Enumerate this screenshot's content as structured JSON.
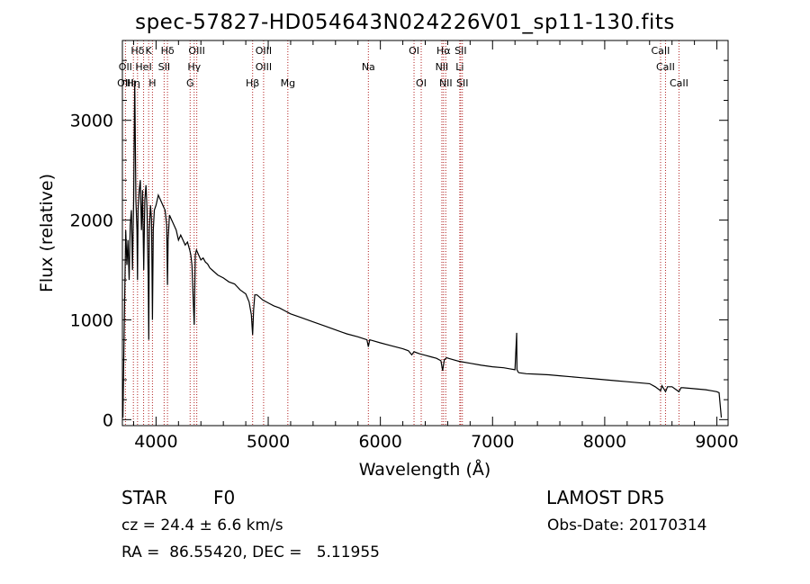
{
  "title": "spec-57827-HD054643N024226V01_sp11-130.fits",
  "footer": {
    "class_label": "STAR",
    "subclass": "F0",
    "survey": "LAMOST DR5",
    "cz_text": "cz = 24.4 ± 6.6 km/s",
    "obs_date": "Obs-Date: 20170314",
    "coords": "RA =  86.55420, DEC =   5.11955"
  },
  "chart_data": {
    "type": "line",
    "title": "spec-57827-HD054643N024226V01_sp11-130.fits",
    "xlabel": "Wavelength (Å)",
    "ylabel": "Flux (relative)",
    "xlim": [
      3700,
      9100
    ],
    "ylim": [
      -60,
      3800
    ],
    "xticks": [
      4000,
      5000,
      6000,
      7000,
      8000,
      9000
    ],
    "yticks": [
      0,
      1000,
      2000,
      3000
    ],
    "grid": false,
    "line_color": "#000000",
    "marker_color": "#b22222",
    "series": [
      {
        "x": [
          3700,
          3705,
          3712,
          3720,
          3730,
          3740,
          3750,
          3760,
          3770,
          3780,
          3790,
          3800,
          3810,
          3820,
          3830,
          3835,
          3840,
          3850,
          3860,
          3870,
          3880,
          3890,
          3900,
          3910,
          3920,
          3930,
          3935,
          3940,
          3950,
          3960,
          3968,
          3975,
          3985,
          4000,
          4020,
          4040,
          4060,
          4080,
          4095,
          4102,
          4108,
          4120,
          4140,
          4160,
          4180,
          4200,
          4220,
          4240,
          4260,
          4280,
          4300,
          4310,
          4320,
          4330,
          4340,
          4345,
          4350,
          4360,
          4380,
          4400,
          4420,
          4440,
          4460,
          4480,
          4500,
          4550,
          4600,
          4650,
          4700,
          4750,
          4800,
          4830,
          4850,
          4861,
          4870,
          4880,
          4900,
          4950,
          5000,
          5050,
          5100,
          5150,
          5200,
          5300,
          5400,
          5500,
          5600,
          5700,
          5800,
          5880,
          5893,
          5905,
          6000,
          6100,
          6200,
          6250,
          6280,
          6300,
          6350,
          6400,
          6450,
          6500,
          6540,
          6555,
          6563,
          6570,
          6590,
          6620,
          6700,
          6800,
          6900,
          7000,
          7100,
          7150,
          7200,
          7215,
          7218,
          7222,
          7226,
          7235,
          7300,
          7400,
          7500,
          7600,
          7700,
          7800,
          7900,
          8000,
          8100,
          8200,
          8300,
          8400,
          8450,
          8498,
          8510,
          8542,
          8560,
          8600,
          8662,
          8680,
          8700,
          8800,
          8900,
          8950,
          9000,
          9020,
          9040
        ],
        "y": [
          100,
          20,
          600,
          1200,
          1900,
          1550,
          1800,
          1400,
          1950,
          2100,
          1500,
          2200,
          3400,
          2200,
          1900,
          1400,
          2100,
          2300,
          2400,
          1900,
          2300,
          1500,
          2200,
          2350,
          2100,
          1400,
          800,
          1900,
          2150,
          2000,
          1000,
          1900,
          2100,
          2150,
          2250,
          2200,
          2150,
          2100,
          1950,
          1350,
          1800,
          2050,
          2000,
          1950,
          1900,
          1800,
          1850,
          1800,
          1750,
          1780,
          1700,
          1650,
          1550,
          1250,
          950,
          1300,
          1650,
          1700,
          1650,
          1600,
          1620,
          1580,
          1560,
          1520,
          1500,
          1450,
          1420,
          1380,
          1360,
          1300,
          1260,
          1180,
          1050,
          850,
          1100,
          1250,
          1250,
          1200,
          1170,
          1140,
          1120,
          1090,
          1060,
          1020,
          980,
          940,
          900,
          860,
          830,
          800,
          730,
          800,
          770,
          740,
          710,
          690,
          650,
          680,
          660,
          645,
          630,
          615,
          590,
          490,
          550,
          600,
          620,
          610,
          585,
          565,
          545,
          530,
          520,
          510,
          500,
          870,
          500,
          495,
          480,
          470,
          460,
          455,
          450,
          440,
          430,
          420,
          410,
          400,
          390,
          380,
          370,
          360,
          330,
          290,
          340,
          280,
          330,
          330,
          280,
          320,
          320,
          310,
          300,
          290,
          280,
          270,
          20
        ]
      }
    ],
    "lines_top": [
      {
        "label": "Hδ",
        "x": 3835
      },
      {
        "label": "K",
        "x": 3934
      },
      {
        "label": "Hδ",
        "x": 4102
      },
      {
        "label": "OIII",
        "x": 4363
      },
      {
        "label": "OIII",
        "x": 4959
      },
      {
        "label": "OI",
        "x": 6300
      },
      {
        "label": "Hα",
        "x": 6563
      },
      {
        "label": "SII",
        "x": 6716
      },
      {
        "label": "CaII",
        "x": 8498
      }
    ],
    "lines_mid": [
      {
        "label": "OII",
        "x": 3727
      },
      {
        "label": "HeI",
        "x": 3889
      },
      {
        "label": "SII",
        "x": 4072
      },
      {
        "label": "Hγ",
        "x": 4340
      },
      {
        "label": "OIII",
        "x": 4959
      },
      {
        "label": "Na",
        "x": 5893
      },
      {
        "label": "NII",
        "x": 6548
      },
      {
        "label": "Li",
        "x": 6708
      },
      {
        "label": "CaII",
        "x": 8542
      }
    ],
    "lines_bot": [
      {
        "label": "OIII",
        "x": 3727
      },
      {
        "label": "Hη",
        "x": 3798
      },
      {
        "label": "H",
        "x": 3968
      },
      {
        "label": "G",
        "x": 4304
      },
      {
        "label": "Hβ",
        "x": 4861
      },
      {
        "label": "Mg",
        "x": 5175
      },
      {
        "label": "OI",
        "x": 6364
      },
      {
        "label": "NII",
        "x": 6583
      },
      {
        "label": "SII",
        "x": 6731
      },
      {
        "label": "CaII",
        "x": 8662
      }
    ]
  }
}
